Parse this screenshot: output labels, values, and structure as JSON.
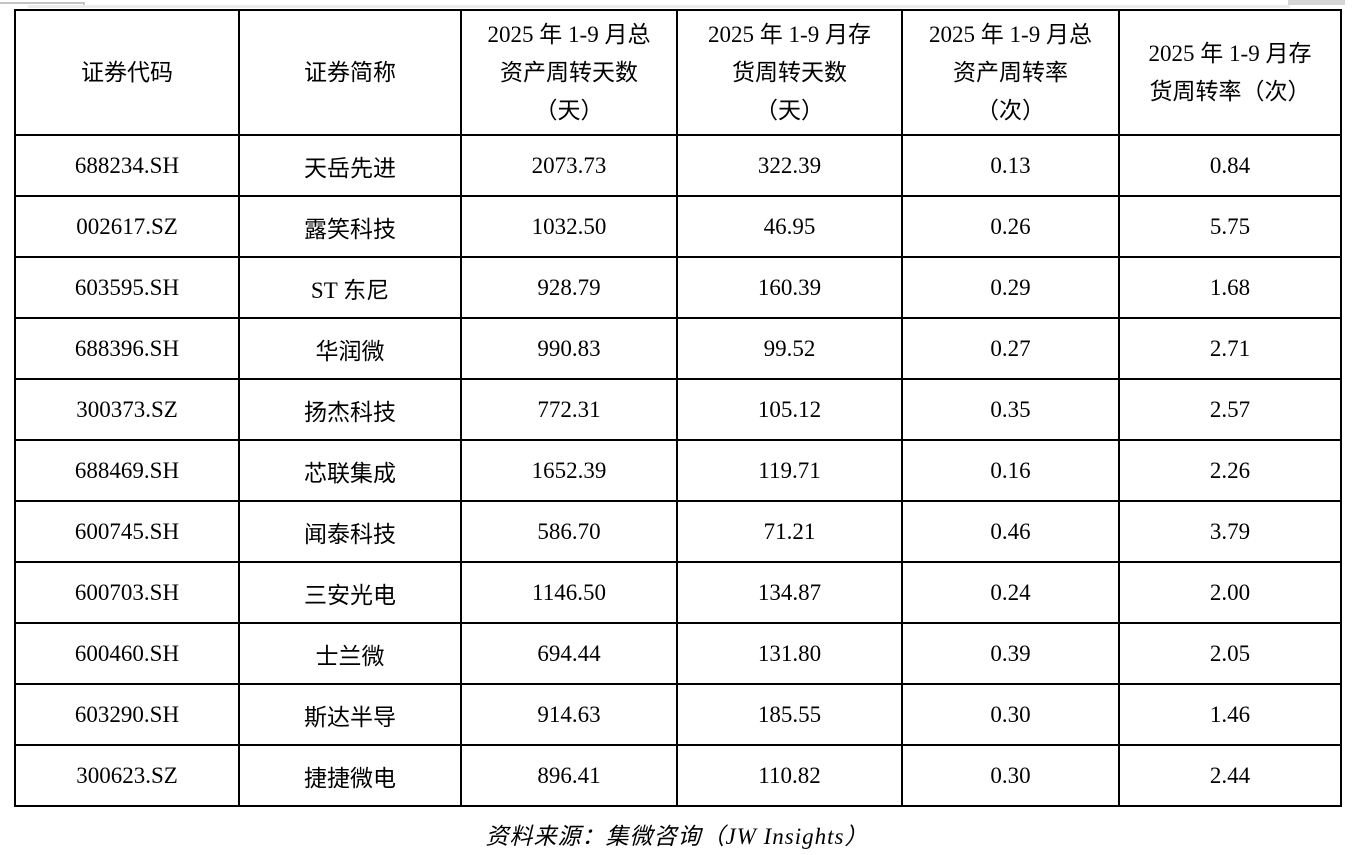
{
  "table": {
    "columns": [
      {
        "label": "证券代码"
      },
      {
        "label": "证券简称"
      },
      {
        "label": "2025 年 1-9 月总\n资产周转天数\n（天）"
      },
      {
        "label": "2025 年 1-9 月存\n货周转天数\n（天）"
      },
      {
        "label": "2025 年 1-9 月总\n资产周转率\n（次）"
      },
      {
        "label": "2025 年 1-9 月存\n货周转率（次）"
      }
    ],
    "rows": [
      {
        "code": "688234.SH",
        "name": "天岳先进",
        "asset_turnover_days": "2073.73",
        "inventory_turnover_days": "322.39",
        "asset_turnover_rate": "0.13",
        "inventory_turnover_rate": "0.84"
      },
      {
        "code": "002617.SZ",
        "name": "露笑科技",
        "asset_turnover_days": "1032.50",
        "inventory_turnover_days": "46.95",
        "asset_turnover_rate": "0.26",
        "inventory_turnover_rate": "5.75"
      },
      {
        "code": "603595.SH",
        "name": "ST 东尼",
        "asset_turnover_days": "928.79",
        "inventory_turnover_days": "160.39",
        "asset_turnover_rate": "0.29",
        "inventory_turnover_rate": "1.68"
      },
      {
        "code": "688396.SH",
        "name": "华润微",
        "asset_turnover_days": "990.83",
        "inventory_turnover_days": "99.52",
        "asset_turnover_rate": "0.27",
        "inventory_turnover_rate": "2.71"
      },
      {
        "code": "300373.SZ",
        "name": "扬杰科技",
        "asset_turnover_days": "772.31",
        "inventory_turnover_days": "105.12",
        "asset_turnover_rate": "0.35",
        "inventory_turnover_rate": "2.57"
      },
      {
        "code": "688469.SH",
        "name": "芯联集成",
        "asset_turnover_days": "1652.39",
        "inventory_turnover_days": "119.71",
        "asset_turnover_rate": "0.16",
        "inventory_turnover_rate": "2.26"
      },
      {
        "code": "600745.SH",
        "name": "闻泰科技",
        "asset_turnover_days": "586.70",
        "inventory_turnover_days": "71.21",
        "asset_turnover_rate": "0.46",
        "inventory_turnover_rate": "3.79"
      },
      {
        "code": "600703.SH",
        "name": "三安光电",
        "asset_turnover_days": "1146.50",
        "inventory_turnover_days": "134.87",
        "asset_turnover_rate": "0.24",
        "inventory_turnover_rate": "2.00"
      },
      {
        "code": "600460.SH",
        "name": "士兰微",
        "asset_turnover_days": "694.44",
        "inventory_turnover_days": "131.80",
        "asset_turnover_rate": "0.39",
        "inventory_turnover_rate": "2.05"
      },
      {
        "code": "603290.SH",
        "name": "斯达半导",
        "asset_turnover_days": "914.63",
        "inventory_turnover_days": "185.55",
        "asset_turnover_rate": "0.30",
        "inventory_turnover_rate": "1.46"
      },
      {
        "code": "300623.SZ",
        "name": "捷捷微电",
        "asset_turnover_days": "896.41",
        "inventory_turnover_days": "110.82",
        "asset_turnover_rate": "0.30",
        "inventory_turnover_rate": "2.44"
      }
    ]
  },
  "footer": {
    "source_label": "资料来源：集微咨询（JW Insights）"
  }
}
